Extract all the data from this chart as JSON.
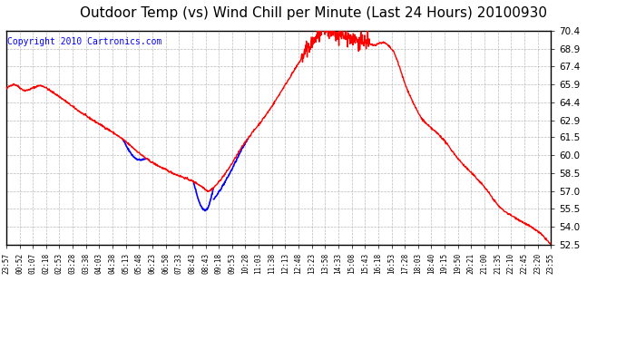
{
  "title": "Outdoor Temp (vs) Wind Chill per Minute (Last 24 Hours) 20100930",
  "copyright": "Copyright 2010 Cartronics.com",
  "ylim": [
    52.5,
    70.4
  ],
  "yticks": [
    52.5,
    54.0,
    55.5,
    57.0,
    58.5,
    60.0,
    61.5,
    62.9,
    64.4,
    65.9,
    67.4,
    68.9,
    70.4
  ],
  "xtick_labels": [
    "23:57",
    "00:52",
    "01:07",
    "02:18",
    "02:53",
    "03:28",
    "03:38",
    "04:03",
    "04:38",
    "05:13",
    "05:48",
    "06:23",
    "06:58",
    "07:33",
    "08:43",
    "08:43",
    "09:18",
    "09:53",
    "10:28",
    "11:03",
    "11:38",
    "12:13",
    "12:48",
    "13:23",
    "13:58",
    "14:33",
    "15:08",
    "15:43",
    "16:18",
    "16:53",
    "17:28",
    "18:03",
    "18:40",
    "19:15",
    "19:50",
    "20:21",
    "21:00",
    "21:35",
    "22:10",
    "22:45",
    "23:20",
    "23:55"
  ],
  "bg_color": "#ffffff",
  "plot_bg_color": "#ffffff",
  "grid_color": "#aaaaaa",
  "line_color_red": "#ff0000",
  "line_color_blue": "#0000ff",
  "title_fontsize": 11,
  "copyright_fontsize": 7
}
